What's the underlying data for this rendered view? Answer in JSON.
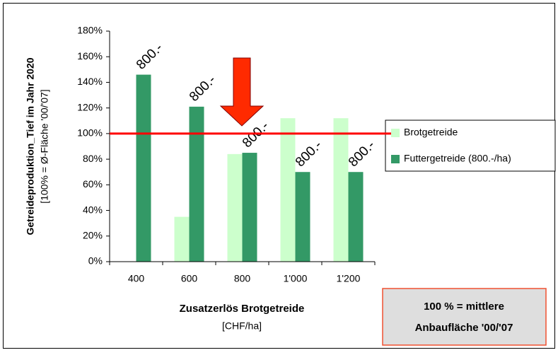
{
  "chart_data": {
    "type": "bar",
    "y_label": "Getreideproduktion_Tief im Jahr 2020",
    "y_sublabel": "[100% = Ø-Fläche '00/'07]",
    "x_label": "Zusatzerlös Brotgetreide",
    "x_sublabel": "[CHF/ha]",
    "categories": [
      "400",
      "600",
      "800",
      "1'000",
      "1'200"
    ],
    "series": [
      {
        "name": "Brotgetreide",
        "color": "#ccffcc",
        "values": [
          null,
          35,
          84,
          112,
          112
        ]
      },
      {
        "name": "Futtergetreide (800.-/ha)",
        "color": "#339966",
        "values": [
          146,
          121,
          85,
          70,
          70
        ]
      }
    ],
    "bar_annotations": [
      "800.-",
      "800.-",
      "800.-",
      "800.-",
      "800.-"
    ],
    "reference_line": {
      "value": 100,
      "color": "#ff0000"
    },
    "note": [
      "100 % = mittlere",
      "Anbaufläche '00/'07"
    ],
    "ylim": [
      0,
      180
    ],
    "yticks": [
      {
        "value": 0,
        "label": "0%"
      },
      {
        "value": 20,
        "label": "20%"
      },
      {
        "value": 40,
        "label": "40%"
      },
      {
        "value": 60,
        "label": "60%"
      },
      {
        "value": 80,
        "label": "80%"
      },
      {
        "value": 100,
        "label": "100%"
      },
      {
        "value": 120,
        "label": "120%"
      },
      {
        "value": 140,
        "label": "140%"
      },
      {
        "value": 160,
        "label": "160%"
      },
      {
        "value": 180,
        "label": "180%"
      }
    ],
    "legend": "right"
  }
}
